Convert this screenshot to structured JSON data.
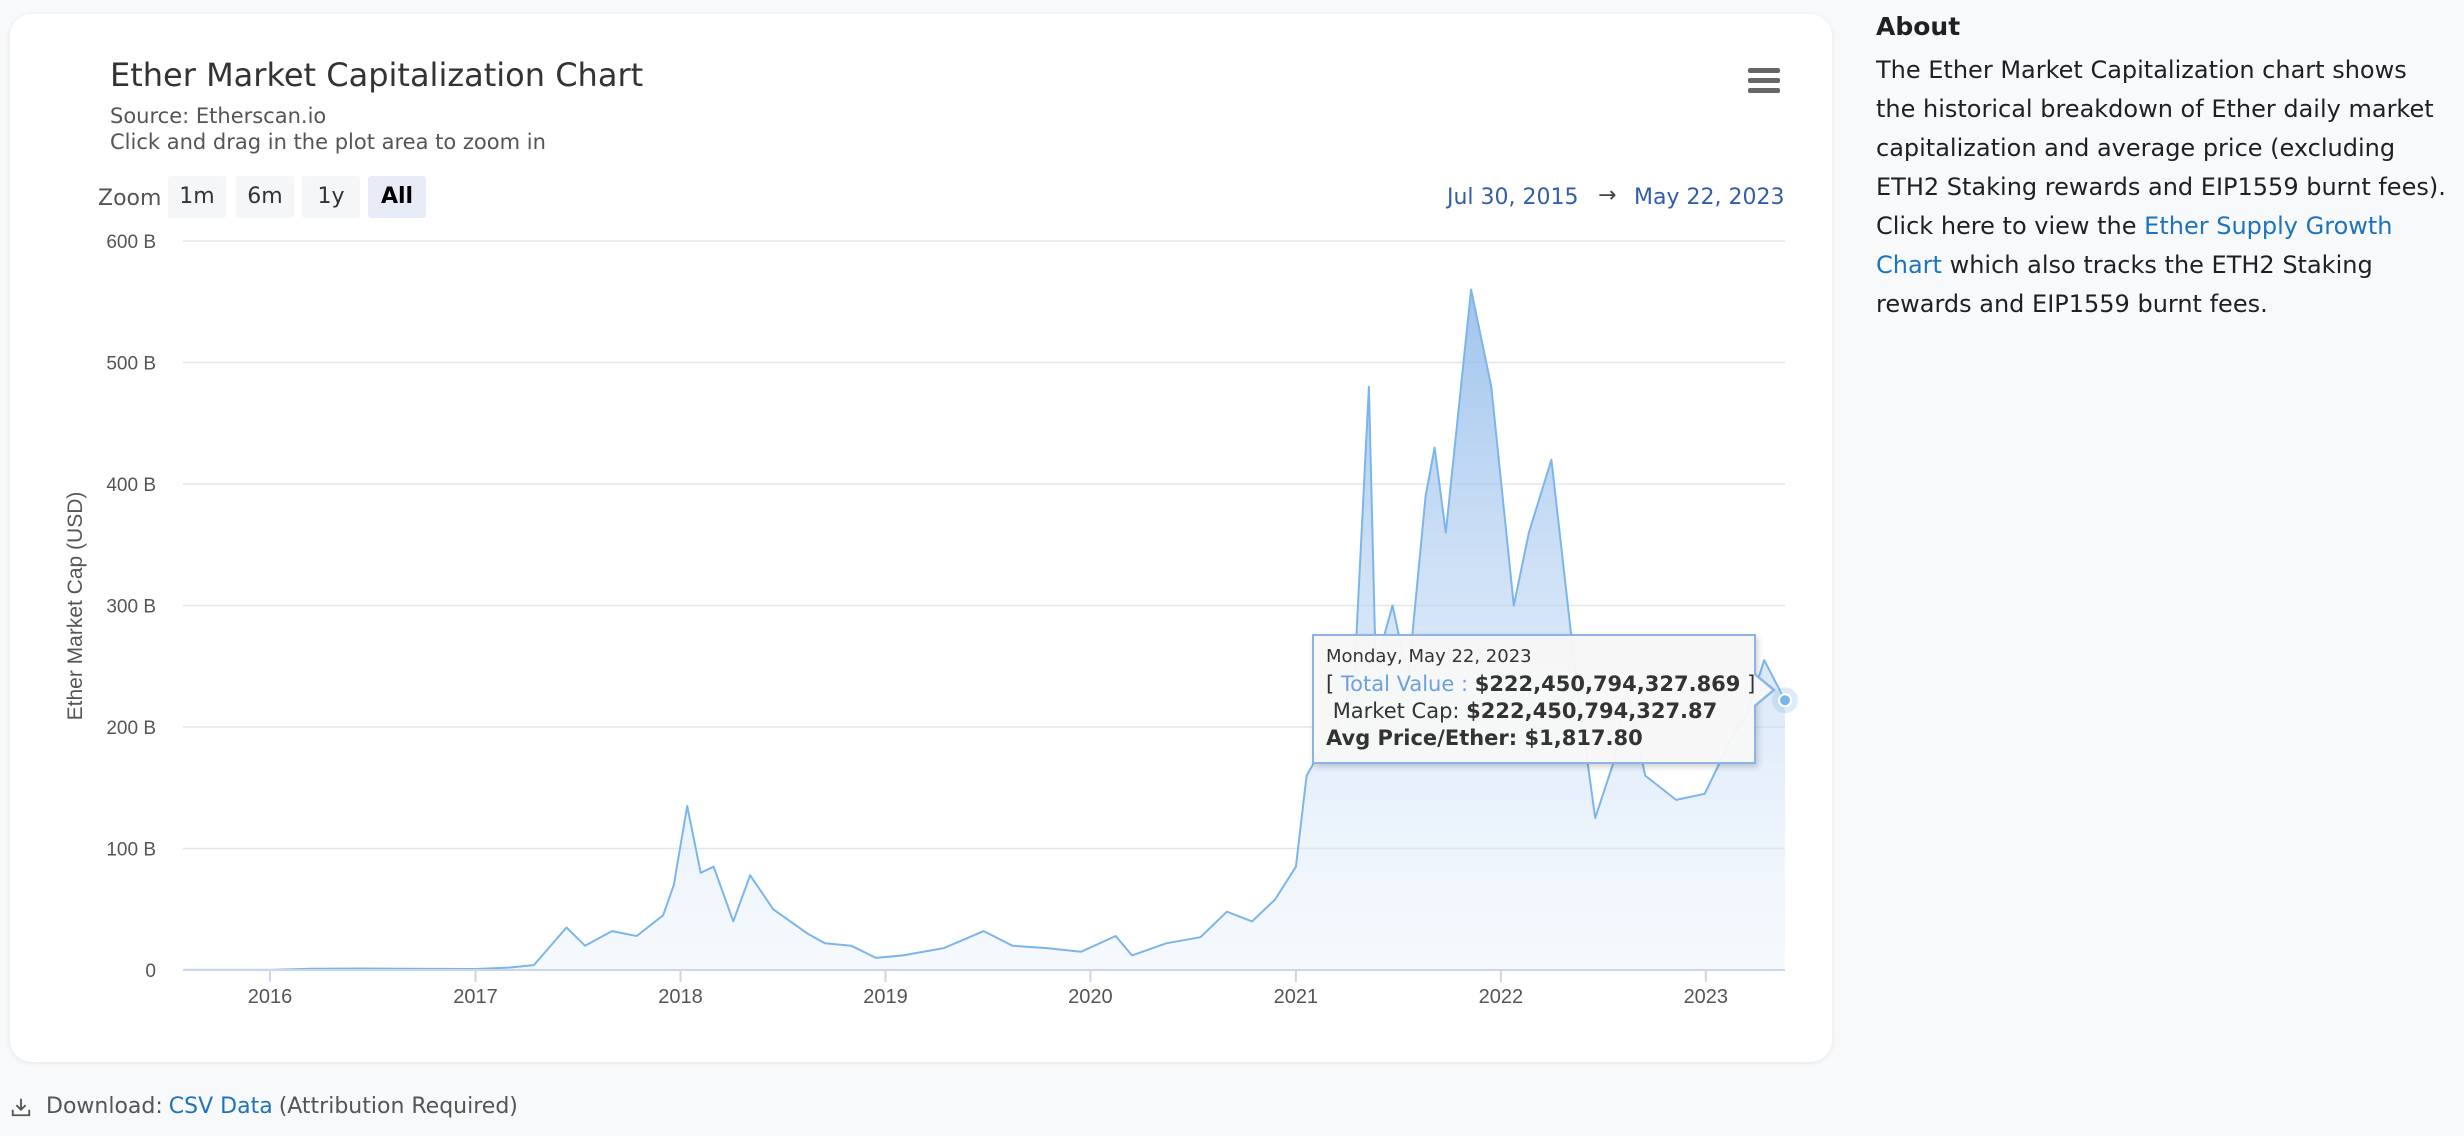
{
  "chart": {
    "title": "Ether Market Capitalization Chart",
    "source": "Source: Etherscan.io",
    "hint": "Click and drag in the plot area to zoom in",
    "menu_icon": "hamburger-menu-icon",
    "zoom_label": "Zoom",
    "zoom_buttons": [
      {
        "label": "1m"
      },
      {
        "label": "6m"
      },
      {
        "label": "1y"
      },
      {
        "label": "All",
        "active": true
      }
    ],
    "range_from": "Jul 30, 2015",
    "range_arrow": "→",
    "range_to": "May 22, 2023",
    "colors": {
      "line": "#7cb5ec",
      "fill_top": "#a6c8ef",
      "accent": "#335cad"
    }
  },
  "tooltip": {
    "date": "Monday, May 22, 2023",
    "total_prefix": "[ ",
    "total_label": "Total Value : ",
    "total_value": "$222,450,794,327.869",
    "total_suffix": " ]",
    "mcap_label": "Market Cap: ",
    "mcap_value": "$222,450,794,327.87",
    "price_label": "Avg Price/Ether: ",
    "price_value": "$1,817.80"
  },
  "chart_data": {
    "type": "area",
    "title": "Ether Market Capitalization Chart",
    "subtitle": "Source: Etherscan.io",
    "xlabel": "",
    "ylabel": "Ether Market Cap (USD)",
    "y_unit": "B",
    "ylim": [
      0,
      600
    ],
    "y_ticks": [
      0,
      100,
      200,
      300,
      400,
      500,
      600
    ],
    "y_tick_labels": [
      "0",
      "100 B",
      "200 B",
      "300 B",
      "400 B",
      "500 B",
      "600 B"
    ],
    "x_range": [
      "2015-07-30",
      "2023-05-22"
    ],
    "x_tick_labels": [
      "2016",
      "2017",
      "2018",
      "2019",
      "2020",
      "2021",
      "2022",
      "2023"
    ],
    "x_tick_dates": [
      "2016-01-01",
      "2017-01-01",
      "2018-01-01",
      "2019-01-01",
      "2020-01-01",
      "2021-01-01",
      "2022-01-01",
      "2023-01-01"
    ],
    "grid": true,
    "legend": "none",
    "series": [
      {
        "x": [
          "2015-07-30",
          "2016-01-01",
          "2016-03-15",
          "2016-06-15",
          "2016-09-01",
          "2017-01-01",
          "2017-03-01",
          "2017-04-15",
          "2017-06-12",
          "2017-07-15",
          "2017-09-01",
          "2017-10-15",
          "2017-12-01",
          "2017-12-20",
          "2018-01-13",
          "2018-02-06",
          "2018-03-01",
          "2018-04-05",
          "2018-05-05",
          "2018-06-15",
          "2018-08-15",
          "2018-09-15",
          "2018-11-01",
          "2018-12-15",
          "2019-02-01",
          "2019-04-15",
          "2019-06-25",
          "2019-08-15",
          "2019-10-15",
          "2019-12-15",
          "2020-02-15",
          "2020-03-15",
          "2020-05-15",
          "2020-07-15",
          "2020-08-31",
          "2020-10-15",
          "2020-11-25",
          "2021-01-01",
          "2021-01-20",
          "2021-02-20",
          "2021-03-15",
          "2021-04-15",
          "2021-05-11",
          "2021-05-23",
          "2021-06-22",
          "2021-07-20",
          "2021-08-20",
          "2021-09-05",
          "2021-09-25",
          "2021-11-09",
          "2021-12-15",
          "2022-01-24",
          "2022-02-20",
          "2022-04-01",
          "2022-05-15",
          "2022-06-18",
          "2022-07-20",
          "2022-08-14",
          "2022-09-15",
          "2022-11-09",
          "2022-12-30",
          "2023-02-15",
          "2023-03-15",
          "2023-04-15",
          "2023-05-22"
        ],
        "y": [
          0.1,
          0.1,
          1,
          1.2,
          1,
          0.8,
          2,
          4,
          35,
          20,
          32,
          28,
          45,
          70,
          135,
          80,
          85,
          40,
          78,
          50,
          30,
          22,
          20,
          10,
          12,
          18,
          32,
          20,
          18,
          15,
          28,
          12,
          22,
          27,
          48,
          40,
          58,
          85,
          160,
          185,
          200,
          240,
          480,
          250,
          300,
          240,
          390,
          430,
          360,
          560,
          480,
          300,
          360,
          420,
          240,
          125,
          170,
          230,
          160,
          140,
          145,
          190,
          210,
          255,
          222
        ]
      }
    ]
  },
  "about": {
    "heading": "About",
    "text_before": "The Ether Market Capitalization chart shows the historical breakdown of Ether daily market capitalization and average price (excluding ETH2 Staking rewards and EIP1559 burnt fees). Click here to view the ",
    "link_label": "Ether Supply Growth Chart",
    "text_after": " which also tracks the ETH2 Staking rewards and EIP1559 burnt fees."
  },
  "download": {
    "icon": "download-icon",
    "prefix": "Download:",
    "link_label": "CSV Data",
    "suffix": "(Attribution Required)"
  }
}
